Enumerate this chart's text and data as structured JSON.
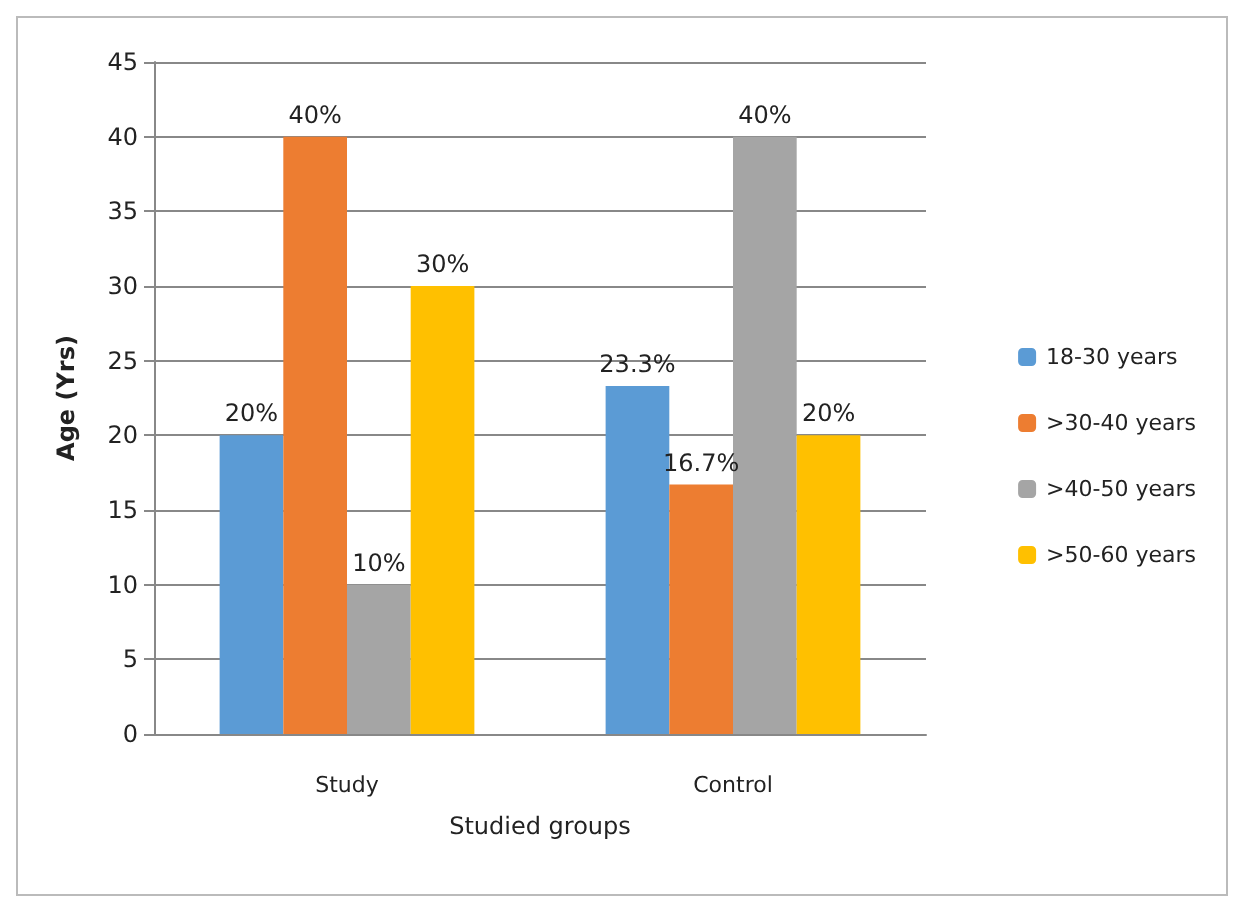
{
  "chart_data": {
    "type": "bar",
    "ylabel": "Age (Yrs)",
    "xlabel": "Studied groups",
    "categories": [
      "Study",
      "Control"
    ],
    "series": [
      {
        "name": "18-30 years",
        "color": "#5b9bd5",
        "values": [
          20,
          23.3
        ],
        "value_labels": [
          "20%",
          "23.3%"
        ]
      },
      {
        "name": ">30-40 years",
        "color": "#ed7d31",
        "values": [
          40,
          16.7
        ],
        "value_labels": [
          "40%",
          "16.7%"
        ]
      },
      {
        "name": ">40-50 years",
        "color": "#a5a5a5",
        "values": [
          10,
          40
        ],
        "value_labels": [
          "10%",
          "40%"
        ]
      },
      {
        "name": ">50-60 years",
        "color": "#ffc000",
        "values": [
          30,
          20
        ],
        "value_labels": [
          "30%",
          "20%"
        ]
      }
    ],
    "ylim": [
      0,
      45
    ],
    "yticks": [
      0,
      5,
      10,
      15,
      20,
      25,
      30,
      35,
      40,
      45
    ],
    "grid": "y",
    "legend": "right"
  }
}
